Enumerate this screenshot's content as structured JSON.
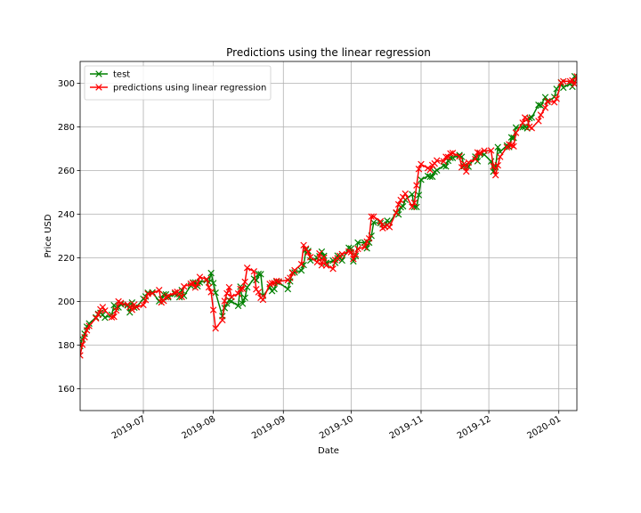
{
  "chart_data": {
    "type": "line",
    "title": "Predictions using the linear regression",
    "xlabel": "Date",
    "ylabel": "Price USD",
    "xlim": [
      "2019-06-03",
      "2020-01-09"
    ],
    "ylim": [
      150,
      310
    ],
    "yticks": [
      160,
      180,
      200,
      220,
      240,
      260,
      280,
      300
    ],
    "xticks": [
      {
        "date": "2019-07-01",
        "label": "2019-07"
      },
      {
        "date": "2019-08-01",
        "label": "2019-08"
      },
      {
        "date": "2019-09-01",
        "label": "2019-09"
      },
      {
        "date": "2019-10-01",
        "label": "2019-10"
      },
      {
        "date": "2019-11-01",
        "label": "2019-11"
      },
      {
        "date": "2019-12-01",
        "label": "2019-12"
      },
      {
        "date": "2020-01-01",
        "label": "2020-01"
      }
    ],
    "grid": true,
    "legend_position": "upper-left",
    "x": [
      "2019-06-03",
      "2019-06-04",
      "2019-06-05",
      "2019-06-06",
      "2019-06-07",
      "2019-06-10",
      "2019-06-11",
      "2019-06-12",
      "2019-06-13",
      "2019-06-14",
      "2019-06-17",
      "2019-06-18",
      "2019-06-19",
      "2019-06-20",
      "2019-06-21",
      "2019-06-24",
      "2019-06-25",
      "2019-06-26",
      "2019-06-27",
      "2019-06-28",
      "2019-07-01",
      "2019-07-02",
      "2019-07-03",
      "2019-07-05",
      "2019-07-08",
      "2019-07-09",
      "2019-07-10",
      "2019-07-11",
      "2019-07-12",
      "2019-07-15",
      "2019-07-16",
      "2019-07-17",
      "2019-07-18",
      "2019-07-19",
      "2019-07-22",
      "2019-07-23",
      "2019-07-24",
      "2019-07-25",
      "2019-07-26",
      "2019-07-29",
      "2019-07-30",
      "2019-07-31",
      "2019-08-01",
      "2019-08-02",
      "2019-08-05",
      "2019-08-06",
      "2019-08-07",
      "2019-08-08",
      "2019-08-09",
      "2019-08-12",
      "2019-08-13",
      "2019-08-14",
      "2019-08-15",
      "2019-08-16",
      "2019-08-19",
      "2019-08-20",
      "2019-08-21",
      "2019-08-22",
      "2019-08-23",
      "2019-08-26",
      "2019-08-27",
      "2019-08-28",
      "2019-08-29",
      "2019-08-30",
      "2019-09-03",
      "2019-09-04",
      "2019-09-05",
      "2019-09-06",
      "2019-09-09",
      "2019-09-10",
      "2019-09-11",
      "2019-09-12",
      "2019-09-13",
      "2019-09-16",
      "2019-09-17",
      "2019-09-18",
      "2019-09-19",
      "2019-09-20",
      "2019-09-23",
      "2019-09-24",
      "2019-09-25",
      "2019-09-26",
      "2019-09-27",
      "2019-09-30",
      "2019-10-01",
      "2019-10-02",
      "2019-10-03",
      "2019-10-04",
      "2019-10-07",
      "2019-10-08",
      "2019-10-09",
      "2019-10-10",
      "2019-10-11",
      "2019-10-14",
      "2019-10-15",
      "2019-10-16",
      "2019-10-17",
      "2019-10-18",
      "2019-10-21",
      "2019-10-22",
      "2019-10-23",
      "2019-10-24",
      "2019-10-25",
      "2019-10-28",
      "2019-10-29",
      "2019-10-30",
      "2019-10-31",
      "2019-11-01",
      "2019-11-04",
      "2019-11-05",
      "2019-11-06",
      "2019-11-07",
      "2019-11-08",
      "2019-11-11",
      "2019-11-12",
      "2019-11-13",
      "2019-11-14",
      "2019-11-15",
      "2019-11-18",
      "2019-11-19",
      "2019-11-20",
      "2019-11-21",
      "2019-11-22",
      "2019-11-25",
      "2019-11-26",
      "2019-11-27",
      "2019-11-29",
      "2019-12-02",
      "2019-12-03",
      "2019-12-04",
      "2019-12-05",
      "2019-12-06",
      "2019-12-09",
      "2019-12-10",
      "2019-12-11",
      "2019-12-12",
      "2019-12-13",
      "2019-12-16",
      "2019-12-17",
      "2019-12-18",
      "2019-12-19",
      "2019-12-20",
      "2019-12-23",
      "2019-12-24",
      "2019-12-26",
      "2019-12-27",
      "2019-12-30",
      "2019-12-31",
      "2020-01-02",
      "2020-01-03",
      "2020-01-06",
      "2020-01-07",
      "2020-01-08",
      "2020-01-09"
    ],
    "series": [
      {
        "name": "test",
        "color": "#008000",
        "marker": "x",
        "values": [
          179.6,
          182.8,
          185.2,
          188.4,
          189.9,
          192.7,
          194.3,
          194.8,
          193.9,
          192.6,
          193.9,
          198.3,
          197.2,
          197.3,
          198.7,
          198.2,
          195.0,
          199.5,
          197.2,
          197.5,
          201.2,
          202.3,
          204.0,
          204.2,
          200.1,
          201.0,
          203.2,
          203.2,
          201.9,
          203.5,
          203.3,
          202.0,
          205.2,
          202.6,
          207.2,
          208.7,
          208.7,
          207.0,
          208.7,
          209.7,
          208.8,
          213.0,
          208.4,
          204.0,
          193.3,
          197.0,
          199.0,
          200.6,
          200.1,
          198.0,
          206.8,
          199.0,
          201.7,
          206.5,
          210.4,
          209.8,
          212.6,
          212.5,
          202.6,
          206.5,
          204.8,
          205.7,
          209.0,
          208.7,
          205.7,
          209.2,
          213.3,
          213.3,
          214.2,
          216.7,
          223.6,
          223.1,
          218.8,
          219.9,
          220.7,
          222.8,
          220.9,
          217.7,
          218.7,
          217.7,
          221.0,
          219.9,
          218.8,
          224.6,
          224.3,
          218.4,
          220.8,
          227.0,
          227.0,
          224.4,
          227.0,
          230.1,
          236.2,
          235.9,
          235.3,
          234.4,
          237.0,
          236.2,
          240.5,
          239.9,
          243.2,
          243.6,
          246.6,
          249.1,
          243.3,
          243.3,
          248.8,
          255.8,
          257.5,
          257.2,
          257.2,
          259.4,
          260.1,
          262.2,
          261.9,
          264.5,
          265.8,
          265.8,
          267.1,
          266.3,
          262.0,
          262.0,
          261.8,
          266.4,
          264.3,
          267.8,
          267.3,
          264.2,
          259.5,
          261.7,
          270.7,
          268.6,
          271.5,
          270.8,
          275.2,
          275.0,
          279.7,
          279.9,
          280.0,
          279.4,
          284.0,
          284.3,
          290.1,
          289.8,
          293.6,
          291.5,
          293.7,
          297.4,
          300.4,
          298.0,
          299.8,
          298.4,
          303.2,
          301.9
        ]
      },
      {
        "name": "predictions using linear regression",
        "color": "#ff0000",
        "marker": "x",
        "values": [
          175.3,
          180.2,
          183.6,
          186.8,
          188.8,
          192.3,
          194.0,
          196.4,
          197.4,
          195.8,
          192.8,
          193.0,
          195.9,
          200.0,
          199.3,
          198.6,
          197.5,
          196.2,
          198.6,
          197.4,
          198.4,
          200.7,
          203.5,
          203.7,
          205.2,
          199.6,
          200.3,
          202.0,
          202.5,
          204.1,
          204.4,
          203.4,
          202.1,
          206.9,
          208.1,
          208.4,
          206.4,
          208.3,
          211.2,
          210.2,
          206.5,
          204.3,
          196.1,
          187.7,
          191.5,
          200.2,
          203.7,
          206.5,
          202.1,
          203.6,
          205.7,
          205.8,
          209.0,
          215.4,
          213.8,
          205.6,
          204.3,
          201.7,
          200.8,
          208.0,
          208.4,
          208.5,
          209.4,
          209.2,
          209.8,
          210.8,
          213.1,
          214.3,
          217.1,
          225.8,
          224.2,
          222.5,
          220.3,
          218.0,
          222.0,
          216.6,
          220.1,
          216.5,
          215.0,
          219.0,
          219.8,
          220.9,
          221.7,
          222.9,
          222.6,
          219.5,
          221.6,
          224.1,
          224.9,
          227.4,
          228.9,
          238.9,
          238.9,
          236.7,
          233.6,
          234.2,
          234.9,
          234.1,
          240.8,
          244.5,
          246.5,
          247.8,
          249.4,
          243.4,
          245.2,
          253.2,
          260.7,
          262.9,
          261.1,
          260.3,
          262.5,
          263.2,
          264.6,
          264.2,
          266.3,
          266.2,
          267.8,
          268.0,
          266.5,
          261.5,
          263.1,
          259.6,
          263.7,
          265.2,
          268.3,
          268.1,
          269.1,
          269.2,
          262.0,
          257.9,
          262.4,
          266.3,
          270.7,
          272.0,
          271.7,
          271.1,
          277.3,
          281.9,
          284.3,
          283.6,
          280.1,
          279.5,
          282.7,
          285.5,
          288.8,
          291.8,
          291.3,
          292.9,
          300.3,
          300.9,
          300.9,
          301.3,
          299.6,
          303.1
        ]
      }
    ]
  }
}
